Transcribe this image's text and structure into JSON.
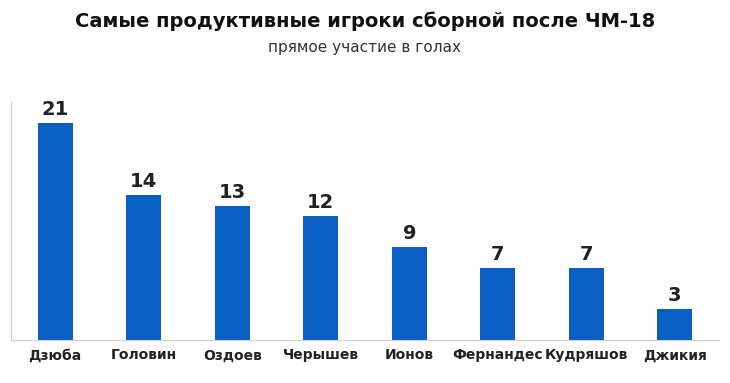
{
  "chart_data": {
    "type": "bar",
    "title": "Самые продуктивные игроки сборной после ЧМ-18",
    "subtitle": "прямое участие в голах",
    "categories": [
      "Дзюба",
      "Головин",
      "Оздоев",
      "Черышев",
      "Ионов",
      "Фернандес",
      "Кудряшов",
      "Джикия"
    ],
    "values": [
      21,
      14,
      13,
      12,
      9,
      7,
      7,
      3
    ],
    "color": "#0a5fc4",
    "ylim": [
      0,
      23
    ],
    "yticks": [],
    "grid": false,
    "data_labels": true,
    "tick_labels": "x"
  }
}
